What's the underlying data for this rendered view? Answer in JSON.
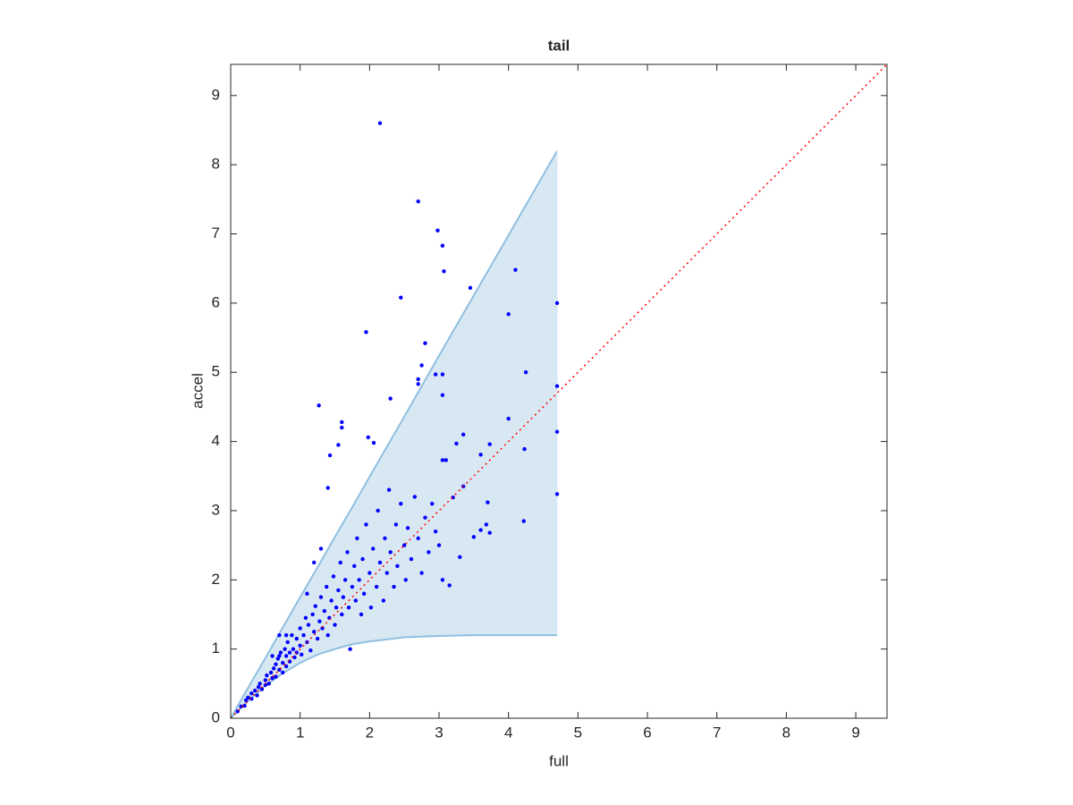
{
  "chart_data": {
    "type": "scatter",
    "title": "tail",
    "xlabel": "full",
    "ylabel": "accel",
    "xlim": [
      0,
      9.45
    ],
    "ylim": [
      0,
      9.45
    ],
    "xticks": [
      0,
      1,
      2,
      3,
      4,
      5,
      6,
      7,
      8,
      9
    ],
    "yticks": [
      0,
      1,
      2,
      3,
      4,
      5,
      6,
      7,
      8,
      9
    ],
    "band": {
      "x": [
        0,
        0.25,
        0.5,
        0.75,
        1,
        1.25,
        1.5,
        1.75,
        2,
        2.5,
        3,
        3.5,
        4,
        4.7
      ],
      "upper": [
        0,
        0.44,
        0.87,
        1.31,
        1.75,
        2.18,
        2.62,
        3.05,
        3.49,
        4.36,
        5.24,
        6.11,
        6.98,
        8.2
      ],
      "lower": [
        0,
        0.25,
        0.47,
        0.65,
        0.8,
        0.92,
        1.0,
        1.07,
        1.11,
        1.17,
        1.19,
        1.2,
        1.2,
        1.2
      ],
      "color": "#d8e8f3",
      "edge_color": "#8fbfe0"
    },
    "reference": {
      "x": [
        0,
        9.45
      ],
      "y": [
        0,
        9.45
      ],
      "color": "#ff0000",
      "style": "dotted"
    },
    "points": {
      "color": "#0000ff",
      "x": [
        2.15,
        2.7,
        2.98,
        3.05,
        3.07,
        2.45,
        3.45,
        4.1,
        4.0,
        4.7,
        1.95,
        2.8,
        2.75,
        2.7,
        2.7,
        2.95,
        3.05,
        3.05,
        2.3,
        4.25,
        4.7,
        4.7,
        4.0,
        4.23,
        4.7,
        4.22,
        1.27,
        1.6,
        1.6,
        1.55,
        1.98,
        2.06,
        1.43,
        1.4,
        3.35,
        3.25,
        3.73,
        3.6,
        3.1,
        3.05,
        3.7,
        3.6,
        3.68,
        3.73,
        3.5,
        3.3,
        3.15,
        3.05,
        3.35,
        3.2,
        0.1,
        0.15,
        0.2,
        0.22,
        0.25,
        0.3,
        0.3,
        0.35,
        0.38,
        0.4,
        0.42,
        0.45,
        0.5,
        0.5,
        0.52,
        0.55,
        0.58,
        0.6,
        0.62,
        0.65,
        0.65,
        0.68,
        0.7,
        0.7,
        0.72,
        0.75,
        0.75,
        0.78,
        0.8,
        0.8,
        0.82,
        0.85,
        0.85,
        0.88,
        0.9,
        0.92,
        0.95,
        0.95,
        1.0,
        1.0,
        1.02,
        1.05,
        1.08,
        1.1,
        1.12,
        1.15,
        1.18,
        1.2,
        1.22,
        1.25,
        1.28,
        1.3,
        1.32,
        1.35,
        1.38,
        1.4,
        1.42,
        1.45,
        1.48,
        1.5,
        1.52,
        1.55,
        1.58,
        1.6,
        1.62,
        1.65,
        1.68,
        1.7,
        1.72,
        1.75,
        1.78,
        1.8,
        1.82,
        1.85,
        1.88,
        1.9,
        1.92,
        1.95,
        2.0,
        2.02,
        2.05,
        2.1,
        2.12,
        2.15,
        2.2,
        2.22,
        2.25,
        2.28,
        2.3,
        2.35,
        2.38,
        2.4,
        2.45,
        2.5,
        2.52,
        2.55,
        2.6,
        2.65,
        2.7,
        2.75,
        2.8,
        2.85,
        2.9,
        2.95,
        3.0,
        1.2,
        1.3,
        1.1,
        0.6,
        0.7,
        0.8
      ],
      "y": [
        8.6,
        7.47,
        7.05,
        6.83,
        6.46,
        6.08,
        6.22,
        6.48,
        5.84,
        6.0,
        5.58,
        5.42,
        5.1,
        4.9,
        4.83,
        4.97,
        4.97,
        4.67,
        4.62,
        5.0,
        4.8,
        4.14,
        4.33,
        3.89,
        3.24,
        2.85,
        4.52,
        4.28,
        4.2,
        3.95,
        4.06,
        3.98,
        3.8,
        3.33,
        4.1,
        3.97,
        3.96,
        3.81,
        3.73,
        3.73,
        3.12,
        2.72,
        2.8,
        2.68,
        2.62,
        2.33,
        1.92,
        2.0,
        3.35,
        3.19,
        0.1,
        0.17,
        0.18,
        0.26,
        0.3,
        0.28,
        0.36,
        0.4,
        0.33,
        0.45,
        0.5,
        0.42,
        0.55,
        0.48,
        0.62,
        0.5,
        0.66,
        0.58,
        0.72,
        0.6,
        0.78,
        0.86,
        0.7,
        0.9,
        0.95,
        0.66,
        0.8,
        1.0,
        0.9,
        0.75,
        1.1,
        0.95,
        0.82,
        1.2,
        1.0,
        0.88,
        1.15,
        0.95,
        1.05,
        1.3,
        0.92,
        1.2,
        1.45,
        1.1,
        1.35,
        0.98,
        1.5,
        1.25,
        1.62,
        1.15,
        1.4,
        1.75,
        1.3,
        1.55,
        1.9,
        1.2,
        1.45,
        1.7,
        2.05,
        1.35,
        1.6,
        1.85,
        2.25,
        1.5,
        1.75,
        2.0,
        2.4,
        1.6,
        1.0,
        1.9,
        2.2,
        1.7,
        2.6,
        2.0,
        1.5,
        2.3,
        1.8,
        2.8,
        2.1,
        1.6,
        2.45,
        1.9,
        3.0,
        2.25,
        1.7,
        2.6,
        2.1,
        3.3,
        2.4,
        1.9,
        2.8,
        2.2,
        3.1,
        2.5,
        2.0,
        2.75,
        2.3,
        3.2,
        2.6,
        2.1,
        2.9,
        2.4,
        3.1,
        2.7,
        2.5,
        2.25,
        2.45,
        1.8,
        0.9,
        1.2,
        1.2
      ]
    }
  }
}
